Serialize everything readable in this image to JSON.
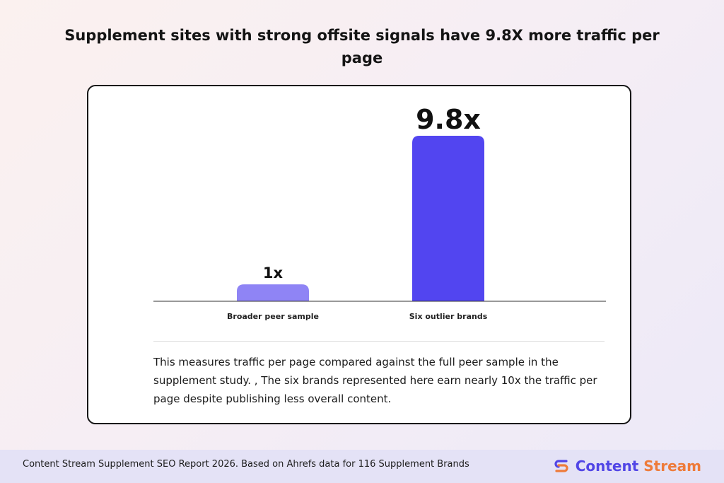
{
  "page": {
    "title": "Supplement sites with strong offsite signals have 9.8X more traffic per page",
    "description": "This measures traffic per page compared against the full peer sample in the supplement study. , The six brands represented here earn nearly 10x the traffic per page despite publishing less overall content."
  },
  "footer": {
    "note": "Content Stream Supplement SEO Report 2026. Based on Ahrefs data for 116 Supplement Brands",
    "brand_name_part1": "Content",
    "brand_name_part2": "Stream",
    "brand_icon": "content-stream-logo-icon"
  },
  "chart_data": {
    "type": "bar",
    "categories": [
      "Broader peer sample",
      "Six outlier brands"
    ],
    "values": [
      1,
      9.8
    ],
    "value_labels": [
      "1x",
      "9.8x"
    ],
    "colors": [
      "#8f84f5",
      "#5245f0"
    ],
    "title": "",
    "xlabel": "",
    "ylabel": "",
    "ylim": [
      0,
      9.8
    ],
    "grid": false,
    "legend": "none"
  }
}
